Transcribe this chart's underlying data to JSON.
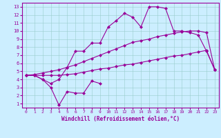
{
  "x_full": [
    0,
    1,
    2,
    3,
    4,
    5,
    6,
    7,
    8,
    9,
    10,
    11,
    12,
    13,
    14,
    15,
    16,
    17,
    18,
    19,
    20,
    21,
    22,
    23
  ],
  "line_peaked": [
    4.5,
    4.5,
    4.0,
    3.5,
    4.0,
    5.5,
    7.5,
    7.5,
    8.5,
    8.5,
    10.5,
    11.3,
    12.2,
    11.7,
    10.5,
    13.0,
    13.0,
    12.8,
    10.0,
    10.0,
    9.8,
    9.5,
    7.5,
    5.2
  ],
  "line_dip": [
    4.5,
    4.5,
    4.0,
    3.0,
    0.8,
    2.5,
    2.3,
    2.3,
    3.8,
    3.5,
    null,
    null,
    null,
    null,
    null,
    null,
    null,
    null,
    null,
    null,
    null,
    null,
    null,
    null
  ],
  "line_diag_top": [
    4.5,
    4.6,
    4.8,
    5.0,
    5.2,
    5.5,
    5.8,
    6.2,
    6.6,
    7.0,
    7.4,
    7.8,
    8.2,
    8.6,
    8.8,
    9.0,
    9.3,
    9.5,
    9.7,
    9.9,
    10.0,
    10.0,
    9.8,
    5.2
  ],
  "line_diag_bot": [
    4.5,
    4.5,
    4.5,
    4.5,
    4.5,
    4.6,
    4.7,
    4.9,
    5.1,
    5.3,
    5.4,
    5.6,
    5.8,
    5.9,
    6.1,
    6.3,
    6.5,
    6.7,
    6.9,
    7.0,
    7.2,
    7.4,
    7.6,
    5.2
  ],
  "line_color": "#990099",
  "bg_color": "#cceeff",
  "xlabel": "Windchill (Refroidissement éolien,°C)",
  "ylim": [
    0.5,
    13.5
  ],
  "xlim": [
    -0.5,
    23.5
  ],
  "yticks": [
    1,
    2,
    3,
    4,
    5,
    6,
    7,
    8,
    9,
    10,
    11,
    12,
    13
  ],
  "xticks": [
    0,
    1,
    2,
    3,
    4,
    5,
    6,
    7,
    8,
    9,
    10,
    11,
    12,
    13,
    14,
    15,
    16,
    17,
    18,
    19,
    20,
    21,
    22,
    23
  ]
}
